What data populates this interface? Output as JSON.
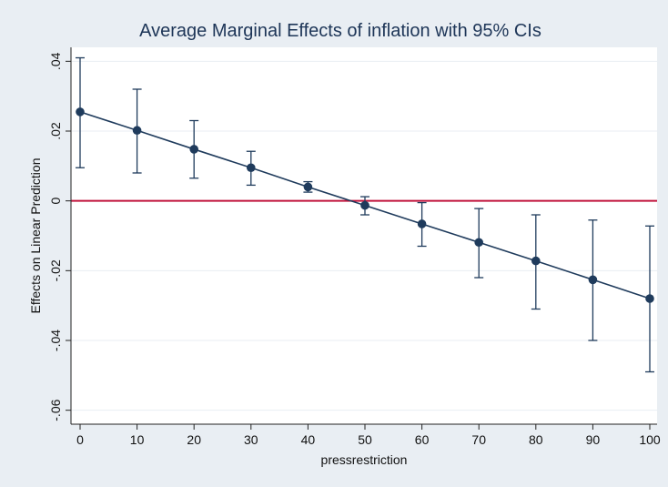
{
  "chart_data": {
    "type": "line",
    "title": "Average Marginal Effects of inflation with 95% CIs",
    "xlabel": "pressrestriction",
    "ylabel": "Effects on Linear Prediction",
    "x": [
      0,
      10,
      20,
      30,
      40,
      50,
      60,
      70,
      80,
      90,
      100
    ],
    "x_tick_labels": [
      "0",
      "10",
      "20",
      "30",
      "40",
      "50",
      "60",
      "70",
      "80",
      "90",
      "100"
    ],
    "y_ticks": [
      0.04,
      0.02,
      0,
      -0.02,
      -0.04,
      -0.06
    ],
    "y_tick_labels": [
      ".04",
      ".02",
      "0",
      "-.02",
      "-.04",
      "-.06"
    ],
    "xlim": [
      0,
      100
    ],
    "ylim": [
      -0.06,
      0.04
    ],
    "grid": true,
    "series": [
      {
        "values": [
          0.0255,
          0.0202,
          0.0148,
          0.0095,
          0.004,
          -0.0013,
          -0.0066,
          -0.0119,
          -0.0172,
          -0.0226,
          -0.028
        ],
        "ci_lower": [
          0.0095,
          0.008,
          0.0065,
          0.0045,
          0.0025,
          -0.004,
          -0.013,
          -0.022,
          -0.031,
          -0.04,
          -0.049
        ],
        "ci_upper": [
          0.041,
          0.032,
          0.023,
          0.0142,
          0.0055,
          0.0012,
          -0.0005,
          -0.0022,
          -0.004,
          -0.0055,
          -0.0072
        ]
      }
    ],
    "reference_line": {
      "y": 0
    },
    "colors": {
      "series": "#1f3b5c",
      "reference_line": "#c0143c",
      "background_outer": "#e9eef3",
      "background_plot": "#ffffff",
      "grid": "#e9eef3",
      "title": "#1d3557"
    }
  }
}
